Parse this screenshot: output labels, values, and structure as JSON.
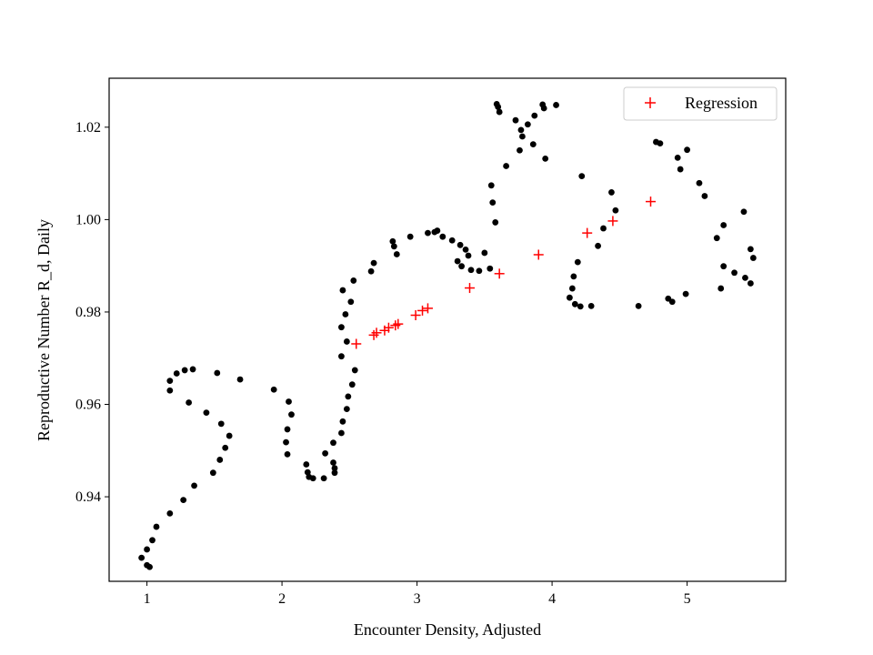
{
  "chart_data": {
    "type": "scatter",
    "title": "",
    "xlabel": "Encounter Density, Adjusted",
    "ylabel": "Reproductive Number R_d, Daily",
    "xlim": [
      0.72,
      5.73
    ],
    "ylim": [
      0.9217,
      1.0306
    ],
    "x_ticks": [
      1,
      2,
      3,
      4,
      5
    ],
    "y_ticks": [
      0.94,
      0.96,
      0.98,
      1.0,
      1.02
    ],
    "y_tick_labels": [
      "0.94",
      "0.96",
      "0.98",
      "1.00",
      "1.02"
    ],
    "grid": false,
    "legend_position": "top-right",
    "series": [
      {
        "marker": "dot",
        "color": "#000000",
        "points": [
          [
            0.96,
            0.9268
          ],
          [
            1.0,
            0.9252
          ],
          [
            1.02,
            0.9248
          ],
          [
            1.0,
            0.9286
          ],
          [
            1.04,
            0.9306
          ],
          [
            1.07,
            0.9335
          ],
          [
            1.17,
            0.9364
          ],
          [
            1.27,
            0.9393
          ],
          [
            1.35,
            0.9424
          ],
          [
            1.49,
            0.9452
          ],
          [
            1.54,
            0.948
          ],
          [
            1.58,
            0.9506
          ],
          [
            1.61,
            0.9532
          ],
          [
            1.55,
            0.9558
          ],
          [
            1.44,
            0.9582
          ],
          [
            1.31,
            0.9604
          ],
          [
            1.17,
            0.963
          ],
          [
            1.17,
            0.9651
          ],
          [
            1.22,
            0.9667
          ],
          [
            1.28,
            0.9674
          ],
          [
            1.34,
            0.9676
          ],
          [
            1.52,
            0.9668
          ],
          [
            1.69,
            0.9654
          ],
          [
            1.94,
            0.9632
          ],
          [
            2.05,
            0.9606
          ],
          [
            2.07,
            0.9578
          ],
          [
            2.04,
            0.9546
          ],
          [
            2.03,
            0.9518
          ],
          [
            2.04,
            0.9492
          ],
          [
            2.18,
            0.947
          ],
          [
            2.19,
            0.9453
          ],
          [
            2.2,
            0.9443
          ],
          [
            2.23,
            0.944
          ],
          [
            2.31,
            0.944
          ],
          [
            2.39,
            0.9452
          ],
          [
            2.39,
            0.9462
          ],
          [
            2.38,
            0.9474
          ],
          [
            2.32,
            0.9494
          ],
          [
            2.38,
            0.9517
          ],
          [
            2.44,
            0.9538
          ],
          [
            2.45,
            0.9563
          ],
          [
            2.48,
            0.959
          ],
          [
            2.49,
            0.9617
          ],
          [
            2.52,
            0.9643
          ],
          [
            2.54,
            0.9674
          ],
          [
            2.44,
            0.9704
          ],
          [
            2.48,
            0.9736
          ],
          [
            2.44,
            0.9767
          ],
          [
            2.47,
            0.9795
          ],
          [
            2.51,
            0.9822
          ],
          [
            2.45,
            0.9847
          ],
          [
            2.53,
            0.9868
          ],
          [
            2.66,
            0.9888
          ],
          [
            2.68,
            0.9906
          ],
          [
            2.82,
            0.9953
          ],
          [
            2.83,
            0.9942
          ],
          [
            2.85,
            0.9925
          ],
          [
            2.95,
            0.9963
          ],
          [
            3.08,
            0.9971
          ],
          [
            3.13,
            0.9973
          ],
          [
            3.15,
            0.9976
          ],
          [
            3.19,
            0.9963
          ],
          [
            3.26,
            0.9955
          ],
          [
            3.32,
            0.9945
          ],
          [
            3.36,
            0.9935
          ],
          [
            3.38,
            0.9922
          ],
          [
            3.3,
            0.991
          ],
          [
            3.33,
            0.9899
          ],
          [
            3.4,
            0.9891
          ],
          [
            3.46,
            0.9889
          ],
          [
            3.5,
            0.9928
          ],
          [
            3.54,
            0.9894
          ],
          [
            3.55,
            1.0074
          ],
          [
            3.56,
            1.0037
          ],
          [
            3.58,
            0.9994
          ],
          [
            3.59,
            1.025
          ],
          [
            3.6,
            1.0244
          ],
          [
            3.61,
            1.0233
          ],
          [
            3.66,
            1.0116
          ],
          [
            3.73,
            1.0215
          ],
          [
            3.76,
            1.015
          ],
          [
            3.78,
            1.018
          ],
          [
            3.77,
            1.0194
          ],
          [
            3.82,
            1.0206
          ],
          [
            3.86,
            1.0163
          ],
          [
            3.87,
            1.0225
          ],
          [
            3.93,
            1.0249
          ],
          [
            3.94,
            1.0241
          ],
          [
            3.95,
            1.0132
          ],
          [
            4.03,
            1.0248
          ],
          [
            4.13,
            0.9831
          ],
          [
            4.15,
            0.9851
          ],
          [
            4.16,
            0.9877
          ],
          [
            4.17,
            0.9817
          ],
          [
            4.19,
            0.9908
          ],
          [
            4.21,
            0.9812
          ],
          [
            4.22,
            1.0094
          ],
          [
            4.29,
            0.9813
          ],
          [
            4.34,
            0.9943
          ],
          [
            4.38,
            0.9981
          ],
          [
            4.44,
            1.0059
          ],
          [
            4.47,
            1.002
          ],
          [
            4.64,
            0.9813
          ],
          [
            4.77,
            1.0168
          ],
          [
            4.8,
            1.0165
          ],
          [
            4.86,
            0.9829
          ],
          [
            4.89,
            0.9822
          ],
          [
            4.93,
            1.0134
          ],
          [
            4.95,
            1.0109
          ],
          [
            4.99,
            0.9839
          ],
          [
            5.0,
            1.0151
          ],
          [
            5.09,
            1.0079
          ],
          [
            5.13,
            1.0051
          ],
          [
            5.22,
            0.996
          ],
          [
            5.25,
            0.9851
          ],
          [
            5.27,
            0.9988
          ],
          [
            5.27,
            0.9899
          ],
          [
            5.35,
            0.9885
          ],
          [
            5.42,
            1.0017
          ],
          [
            5.43,
            0.9874
          ],
          [
            5.47,
            0.9936
          ],
          [
            5.47,
            0.9862
          ],
          [
            5.49,
            0.9917
          ]
        ]
      },
      {
        "name": "Regression",
        "marker": "plus",
        "color": "#ff0000",
        "points": [
          [
            2.55,
            0.9731
          ],
          [
            2.68,
            0.975
          ],
          [
            2.7,
            0.9755
          ],
          [
            2.76,
            0.976
          ],
          [
            2.79,
            0.9766
          ],
          [
            2.84,
            0.9771
          ],
          [
            2.86,
            0.9774
          ],
          [
            2.99,
            0.9793
          ],
          [
            3.04,
            0.9803
          ],
          [
            3.08,
            0.9808
          ],
          [
            3.39,
            0.9852
          ],
          [
            3.61,
            0.9883
          ],
          [
            3.9,
            0.9924
          ],
          [
            4.26,
            0.9971
          ],
          [
            4.45,
            0.9997
          ],
          [
            4.73,
            1.0039
          ]
        ]
      }
    ]
  }
}
